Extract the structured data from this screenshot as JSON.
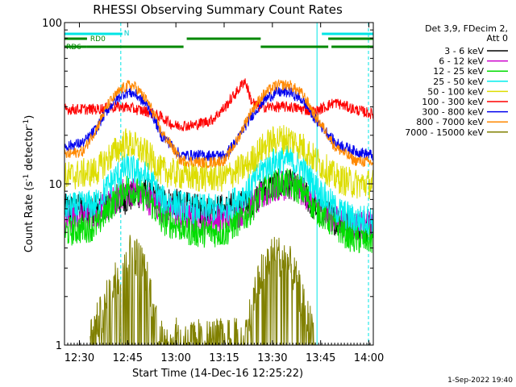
{
  "chart_data": {
    "type": "line",
    "title": "RHESSI Observing Summary Count Rates",
    "xlabel": "Start Time (14-Dec-16 12:25:22)",
    "ylabel_main": "Count Rate (s",
    "ylabel_sup1": "-1",
    "ylabel_mid": " detector",
    "ylabel_sup2": "-1",
    "ylabel_end": ")",
    "y_log_scale": true,
    "x_tick_labels": [
      "12:30",
      "12:45",
      "13:00",
      "13:15",
      "13:30",
      "13:45",
      "14:00"
    ],
    "x_tick_minutes": [
      4.63,
      19.63,
      34.63,
      49.63,
      64.63,
      79.63,
      94.63
    ],
    "xlim_minutes": [
      0,
      96
    ],
    "y_tick_labels": [
      "1",
      "10",
      "100"
    ],
    "y_tick_values": [
      1,
      10,
      100
    ],
    "ylim": [
      1,
      100
    ],
    "grid": false,
    "legend_position": "right",
    "legend_header": [
      "Det 3,9, FDecim 2,",
      "Att 0"
    ],
    "series": [
      {
        "name": "3 - 6 keV",
        "color": "#000000",
        "x": [
          0,
          10,
          19,
          25,
          30,
          40,
          50,
          57,
          62,
          66,
          70,
          74,
          78,
          84,
          90,
          96
        ],
        "y": [
          7,
          7,
          8,
          9,
          8,
          7,
          7,
          7.5,
          9,
          10,
          10,
          9,
          7,
          6,
          5.5,
          5.5
        ]
      },
      {
        "name": "6 - 12 keV",
        "color": "#cc00cc",
        "x": [
          0,
          10,
          16,
          19,
          22,
          26,
          30,
          40,
          50,
          57,
          62,
          66,
          70,
          74,
          78,
          84,
          90,
          96
        ],
        "y": [
          6,
          6.5,
          8,
          9,
          9,
          8,
          7,
          6,
          6,
          7,
          8.5,
          9.5,
          10,
          9,
          7.5,
          6,
          5.5,
          5.5
        ]
      },
      {
        "name": "12 - 25 keV",
        "color": "#00dd00",
        "x": [
          0,
          10,
          16,
          19,
          22,
          26,
          30,
          40,
          50,
          57,
          62,
          66,
          70,
          74,
          78,
          84,
          90,
          96
        ],
        "y": [
          5,
          5.5,
          8,
          9.5,
          9,
          8,
          6,
          5,
          5,
          6.5,
          9,
          10,
          10,
          9,
          7,
          5.5,
          4.5,
          4.5
        ]
      },
      {
        "name": "25 - 50 keV",
        "color": "#00eeee",
        "x": [
          0,
          10,
          16,
          19,
          22,
          26,
          30,
          40,
          50,
          57,
          62,
          66,
          70,
          74,
          78,
          84,
          90,
          96
        ],
        "y": [
          7,
          7.5,
          11,
          12.5,
          12,
          11,
          8,
          7,
          7,
          9,
          12.5,
          14,
          14,
          12.5,
          9.5,
          7,
          6,
          6
        ]
      },
      {
        "name": "50 - 100 keV",
        "color": "#dddd00",
        "x": [
          0,
          10,
          16,
          19,
          22,
          26,
          30,
          40,
          50,
          57,
          62,
          66,
          70,
          74,
          78,
          84,
          90,
          96
        ],
        "y": [
          11,
          12,
          16,
          18,
          17,
          15,
          12,
          11,
          11,
          13,
          17,
          19,
          19,
          17,
          14,
          11,
          10,
          10
        ]
      },
      {
        "name": "100 - 300 keV",
        "color": "#ff0000",
        "x": [
          0,
          10,
          16,
          19,
          22,
          26,
          30,
          34,
          40,
          46,
          50,
          52,
          54,
          56,
          58,
          60,
          64,
          70,
          74,
          78,
          84,
          90,
          96
        ],
        "y": [
          29,
          29,
          30,
          30,
          29,
          28,
          26,
          23,
          23,
          25,
          30,
          34,
          38,
          44,
          33,
          30,
          30,
          30,
          29,
          28,
          32,
          29,
          27
        ]
      },
      {
        "name": "300 - 800 keV",
        "color": "#0000ee",
        "x": [
          0,
          6,
          10,
          14,
          18,
          20,
          22,
          26,
          30,
          36,
          44,
          50,
          54,
          58,
          62,
          66,
          70,
          74,
          78,
          84,
          90,
          96
        ],
        "y": [
          17,
          18,
          22,
          30,
          36,
          37,
          36,
          30,
          20,
          15,
          15,
          15,
          19,
          26,
          33,
          37,
          37,
          33,
          25,
          18,
          16,
          15
        ]
      },
      {
        "name": "800 - 7000 keV",
        "color": "#ff8800",
        "x": [
          0,
          6,
          10,
          14,
          18,
          20,
          22,
          26,
          30,
          36,
          44,
          50,
          54,
          58,
          62,
          66,
          70,
          74,
          78,
          84,
          90,
          96
        ],
        "y": [
          15,
          16,
          22,
          32,
          39,
          41,
          40,
          32,
          21,
          14,
          13.5,
          14,
          19,
          28,
          36,
          41,
          41,
          36,
          26,
          17,
          14,
          13.5
        ]
      },
      {
        "name": "7000 - 15000 keV",
        "color": "#808000",
        "x": [
          8,
          12,
          16,
          18,
          20,
          22,
          24,
          26,
          28,
          30,
          56,
          58,
          60,
          62,
          64,
          66,
          68,
          70,
          72,
          74,
          76,
          78
        ],
        "y": [
          1.1,
          1.6,
          2.6,
          3.2,
          3.7,
          3.6,
          3.2,
          2.4,
          1.6,
          1.1,
          1.1,
          1.6,
          2.4,
          3.1,
          3.5,
          3.6,
          3.5,
          3.1,
          2.5,
          1.8,
          1.4,
          1.1
        ]
      }
    ],
    "annotations": {
      "n_label": "N",
      "rd0_label": "RD0",
      "rd6_label": "RD6",
      "n_segments": [
        [
          0,
          18
        ],
        [
          80,
          96
        ]
      ],
      "rd0_segments": [
        [
          0,
          7
        ],
        [
          38,
          61
        ],
        [
          82,
          96
        ]
      ],
      "rd6_segments": [
        [
          0,
          7
        ],
        [
          7,
          37
        ],
        [
          61,
          82
        ],
        [
          83,
          96
        ]
      ],
      "vertical_markers_solid": [
        0,
        78.5
      ],
      "vertical_markers_dashed": [
        17.5,
        94.5
      ]
    },
    "footer_date": "1-Sep-2022 19:40"
  }
}
